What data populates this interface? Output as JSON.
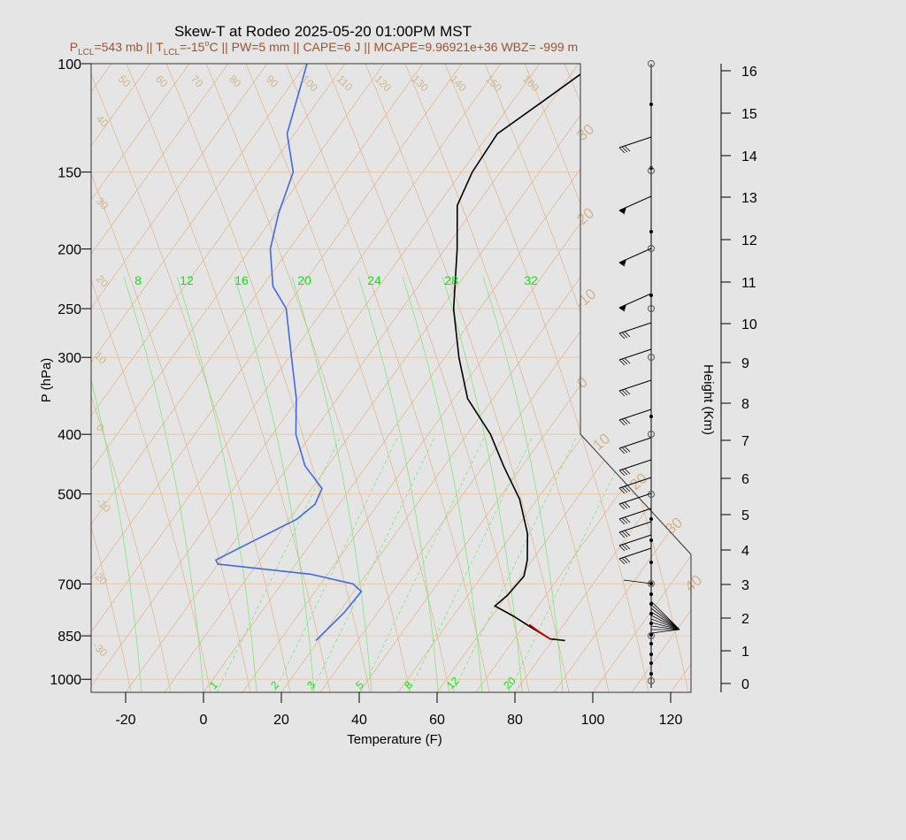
{
  "chart_data": {
    "type": "line",
    "title": "Skew-T at Rodeo 2025-05-20 01:00PM MST",
    "subtitle": {
      "plcl_label": "P",
      "plcl_sub": "LCL",
      "plcl_value": "=543 mb || T",
      "tlcl_sub": "LCL",
      "tlcl_value": "=-15",
      "deg": "o",
      "rest": "C || PW=5 mm || CAPE=6 J || MCAPE=9.96921e+36 WBZ= -999 m"
    },
    "xlabel": "Temperature (F)",
    "ylabel": "P (hPa)",
    "y2label": "Height (Km)",
    "xlim": [
      -28,
      125
    ],
    "ylim_hpa": [
      1050,
      100
    ],
    "x_ticks": [
      -20,
      0,
      20,
      40,
      60,
      80,
      100,
      120
    ],
    "p_ticks": [
      100,
      150,
      200,
      250,
      300,
      400,
      500,
      700,
      850,
      1000
    ],
    "height_ticks": [
      0,
      1,
      2,
      3,
      4,
      5,
      6,
      7,
      8,
      9,
      10,
      11,
      12,
      13,
      14,
      15,
      16
    ],
    "isotherm_labels": [
      "40",
      "50",
      "60",
      "70",
      "80",
      "90",
      "100",
      "110",
      "120",
      "130",
      "140",
      "150",
      "160"
    ],
    "cold_isotherm_labels": [
      "40",
      "30",
      "20",
      "10",
      "0",
      "-10",
      "-20",
      "-30"
    ],
    "right_isotherm_labels": [
      "30",
      "20",
      "-10",
      "0",
      "10",
      "20",
      "30",
      "40"
    ],
    "mixing_ratio_top_labels": [
      "8",
      "12",
      "16",
      "20",
      "24",
      "28",
      "32"
    ],
    "mixing_ratio_bottom_labels": [
      "1",
      "2",
      "3",
      "5",
      "8",
      "12",
      "20"
    ],
    "series": [
      {
        "color": "#000000",
        "points": [
          [
            88,
            865
          ],
          [
            84,
            860
          ],
          [
            78,
            825
          ],
          [
            72,
            790
          ],
          [
            66,
            760
          ],
          [
            68,
            730
          ],
          [
            70,
            680
          ],
          [
            69,
            640
          ],
          [
            66,
            580
          ],
          [
            60,
            510
          ],
          [
            52,
            450
          ],
          [
            45,
            400
          ],
          [
            35,
            350
          ],
          [
            28,
            300
          ],
          [
            21,
            250
          ],
          [
            15,
            200
          ],
          [
            10,
            170
          ],
          [
            10,
            150
          ],
          [
            12,
            130
          ],
          [
            20,
            115
          ],
          [
            29,
            100
          ]
        ]
      },
      {
        "color": "#4169e1",
        "points": [
          [
            24,
            865
          ],
          [
            28,
            780
          ],
          [
            30,
            720
          ],
          [
            27,
            700
          ],
          [
            15,
            675
          ],
          [
            -10,
            650
          ],
          [
            -11,
            640
          ],
          [
            -6,
            610
          ],
          [
            5,
            550
          ],
          [
            8,
            520
          ],
          [
            8,
            490
          ],
          [
            1,
            450
          ],
          [
            -5,
            400
          ],
          [
            -9,
            350
          ],
          [
            -15,
            300
          ],
          [
            -22,
            250
          ],
          [
            -28,
            230
          ],
          [
            -33,
            200
          ],
          [
            -35,
            175
          ],
          [
            -36,
            150
          ],
          [
            -42,
            130
          ],
          [
            -45,
            100
          ]
        ]
      },
      {
        "color": "#cc0000",
        "points": [
          [
            84,
            860
          ],
          [
            80,
            835
          ],
          [
            77,
            815
          ]
        ]
      }
    ]
  }
}
